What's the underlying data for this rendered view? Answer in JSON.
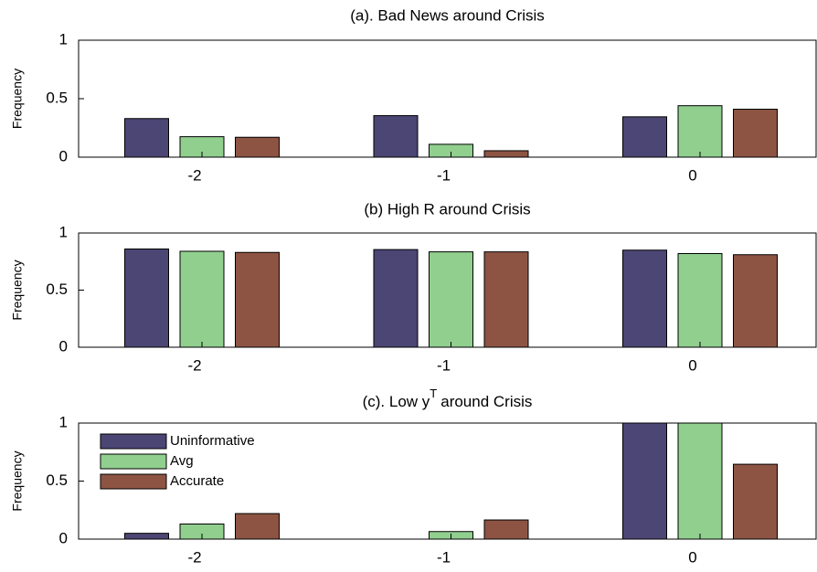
{
  "chart_data": [
    {
      "type": "bar",
      "title": "(a). Bad News around Crisis",
      "ylabel": "Frequency",
      "categories": [
        "-2",
        "-1",
        "0"
      ],
      "ylim": [
        0,
        1
      ],
      "yticks": [
        0,
        0.5,
        1
      ],
      "series": [
        {
          "name": "Uninformative",
          "color": "#4b4674",
          "values": [
            0.33,
            0.355,
            0.345
          ]
        },
        {
          "name": "Avg",
          "color": "#91cf8f",
          "values": [
            0.175,
            0.11,
            0.44
          ]
        },
        {
          "name": "Accurate",
          "color": "#8d5443",
          "values": [
            0.17,
            0.055,
            0.41
          ]
        }
      ]
    },
    {
      "type": "bar",
      "title": "(b) High R around Crisis",
      "ylabel": "Frequency",
      "categories": [
        "-2",
        "-1",
        "0"
      ],
      "ylim": [
        0,
        1
      ],
      "yticks": [
        0,
        0.5,
        1
      ],
      "series": [
        {
          "name": "Uninformative",
          "color": "#4b4674",
          "values": [
            0.86,
            0.855,
            0.85
          ]
        },
        {
          "name": "Avg",
          "color": "#91cf8f",
          "values": [
            0.84,
            0.835,
            0.82
          ]
        },
        {
          "name": "Accurate",
          "color": "#8d5443",
          "values": [
            0.83,
            0.835,
            0.81
          ]
        }
      ]
    },
    {
      "type": "bar",
      "title": [
        "(c). Low y",
        "T",
        "around Crisis"
      ],
      "ylabel": "Frequency",
      "categories": [
        "-2",
        "-1",
        "0"
      ],
      "ylim": [
        0,
        1
      ],
      "yticks": [
        0,
        0.5,
        1
      ],
      "legend": "upper left",
      "series": [
        {
          "name": "Uninformative",
          "color": "#4b4674",
          "values": [
            0.05,
            0,
            1
          ]
        },
        {
          "name": "Avg",
          "color": "#91cf8f",
          "values": [
            0.13,
            0.065,
            1
          ]
        },
        {
          "name": "Accurate",
          "color": "#8d5443",
          "values": [
            0.22,
            0.165,
            0.645
          ]
        }
      ]
    }
  ]
}
